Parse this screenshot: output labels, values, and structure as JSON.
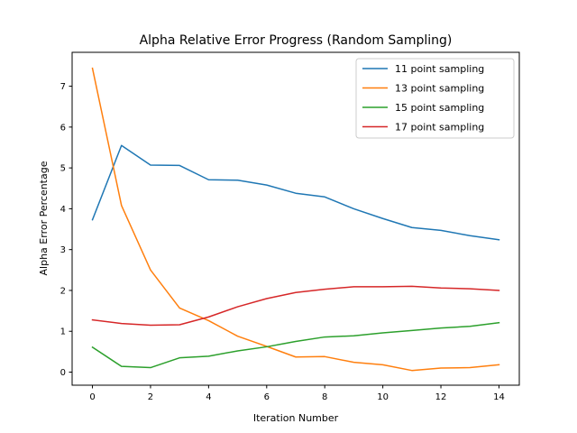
{
  "chart_data": {
    "type": "line",
    "title": "Alpha Relative Error Progress (Random Sampling)",
    "xlabel": "Iteration Number",
    "ylabel": "Alpha Error Percentage",
    "x": [
      0,
      1,
      2,
      3,
      4,
      5,
      6,
      7,
      8,
      9,
      10,
      11,
      12,
      13,
      14
    ],
    "xlim": [
      -0.7,
      14.7
    ],
    "ylim": [
      -0.32,
      7.83
    ],
    "xticks": [
      "0",
      "2",
      "4",
      "6",
      "8",
      "10",
      "12",
      "14"
    ],
    "yticks": [
      "0",
      "1",
      "2",
      "3",
      "4",
      "5",
      "6",
      "7"
    ],
    "grid": false,
    "legend_position": "top-right",
    "series": [
      {
        "name": "11 point sampling",
        "color": "#1f77b4",
        "values": [
          3.73,
          5.55,
          5.07,
          5.06,
          4.71,
          4.7,
          4.58,
          4.38,
          4.29,
          4.0,
          3.76,
          3.54,
          3.47,
          3.34,
          3.24
        ]
      },
      {
        "name": "13 point sampling",
        "color": "#ff7f0e",
        "values": [
          7.44,
          4.08,
          2.5,
          1.57,
          1.26,
          0.88,
          0.63,
          0.37,
          0.38,
          0.24,
          0.18,
          0.04,
          0.1,
          0.11,
          0.18
        ]
      },
      {
        "name": "15 point sampling",
        "color": "#2ca02c",
        "values": [
          0.61,
          0.14,
          0.11,
          0.35,
          0.39,
          0.52,
          0.62,
          0.75,
          0.86,
          0.89,
          0.96,
          1.02,
          1.08,
          1.12,
          1.21
        ]
      },
      {
        "name": "17 point sampling",
        "color": "#d62728",
        "values": [
          1.28,
          1.19,
          1.15,
          1.16,
          1.35,
          1.6,
          1.8,
          1.95,
          2.03,
          2.09,
          2.09,
          2.1,
          2.06,
          2.04,
          2.0
        ]
      }
    ]
  }
}
